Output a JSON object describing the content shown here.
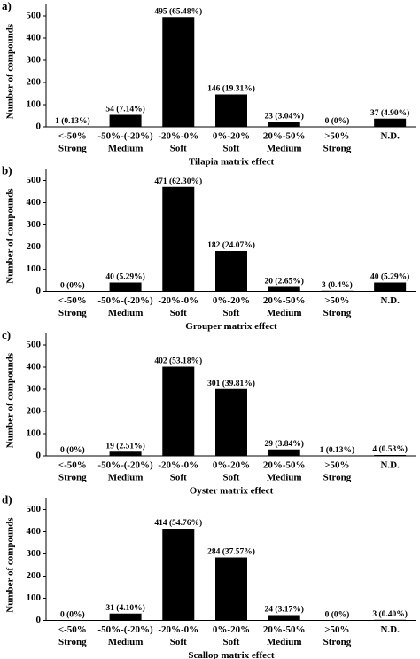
{
  "chart_data": [
    {
      "type": "bar",
      "panel_label": "a)",
      "title": "Tilapia matrix effect",
      "y_label": "Number of compounds",
      "categories": [
        "<-50%",
        "-50%-(-20%)",
        "-20%-0%",
        "0%-20%",
        "20%-50%",
        ">50%",
        "N.D."
      ],
      "sublabels": [
        "Strong",
        "Medium",
        "Soft",
        "Soft",
        "Medium",
        "Strong",
        null
      ],
      "values": [
        1,
        54,
        495,
        146,
        23,
        0,
        37
      ],
      "value_labels": [
        "1 (0.13%)",
        "54 (7.14%)",
        "495 (65.48%)",
        "146 (19.31%)",
        "23 (3.04%)",
        "0 (0%)",
        "37 (4.90%)"
      ],
      "color": "#000000",
      "ylim": [
        0,
        500
      ],
      "yticks": [
        0,
        100,
        200,
        300,
        400,
        500
      ]
    },
    {
      "type": "bar",
      "panel_label": "b)",
      "title": "Grouper matrix effect",
      "y_label": "Number of compounds",
      "categories": [
        "<-50%",
        "-50%-(-20%)",
        "-20%-0%",
        "0%-20%",
        "20%-50%",
        ">50%",
        "N.D."
      ],
      "sublabels": [
        "Strong",
        "Medium",
        "Soft",
        "Soft",
        "Medium",
        "Strong",
        null
      ],
      "values": [
        0,
        40,
        471,
        182,
        20,
        3,
        40
      ],
      "value_labels": [
        "0 (0%)",
        "40 (5.29%)",
        "471 (62.30%)",
        "182 (24.07%)",
        "20 (2.65%)",
        "3 (0.4%)",
        "40 (5.29%)"
      ],
      "color": "#000000",
      "ylim": [
        0,
        500
      ],
      "yticks": [
        0,
        100,
        200,
        300,
        400,
        500
      ]
    },
    {
      "type": "bar",
      "panel_label": "c)",
      "title": "Oyster matrix effect",
      "y_label": "Number of compounds",
      "categories": [
        "<-50%",
        "-50%-(-20%)",
        "-20%-0%",
        "0%-20%",
        "20%-50%",
        ">50%",
        "N.D."
      ],
      "sublabels": [
        "Strong",
        "Medium",
        "Soft",
        "Soft",
        "Medium",
        "Strong",
        null
      ],
      "values": [
        0,
        19,
        402,
        301,
        29,
        1,
        4
      ],
      "value_labels": [
        "0 (0%)",
        "19 (2.51%)",
        "402 (53.18%)",
        "301 (39.81%)",
        "29 (3.84%)",
        "1 (0.13%)",
        "4 (0.53%)"
      ],
      "color": "#000000",
      "ylim": [
        0,
        500
      ],
      "yticks": [
        0,
        100,
        200,
        300,
        400,
        500
      ]
    },
    {
      "type": "bar",
      "panel_label": "d)",
      "title": "Scallop matrix effect",
      "y_label": "Number of compounds",
      "categories": [
        "<-50%",
        "-50%-(-20%)",
        "-20%-0%",
        "0%-20%",
        "20%-50%",
        ">50%",
        "N.D."
      ],
      "sublabels": [
        "Strong",
        "Medium",
        "Soft",
        "Soft",
        "Medium",
        "Strong",
        null
      ],
      "values": [
        0,
        31,
        414,
        284,
        24,
        0,
        3
      ],
      "value_labels": [
        "0 (0%)",
        "31 (4.10%)",
        "414 (54.76%)",
        "284 (37.57%)",
        "24 (3.17%)",
        "0 (0%)",
        "3 (0.40%)"
      ],
      "color": "#000000",
      "ylim": [
        0,
        500
      ],
      "yticks": [
        0,
        100,
        200,
        300,
        400,
        500
      ]
    }
  ]
}
